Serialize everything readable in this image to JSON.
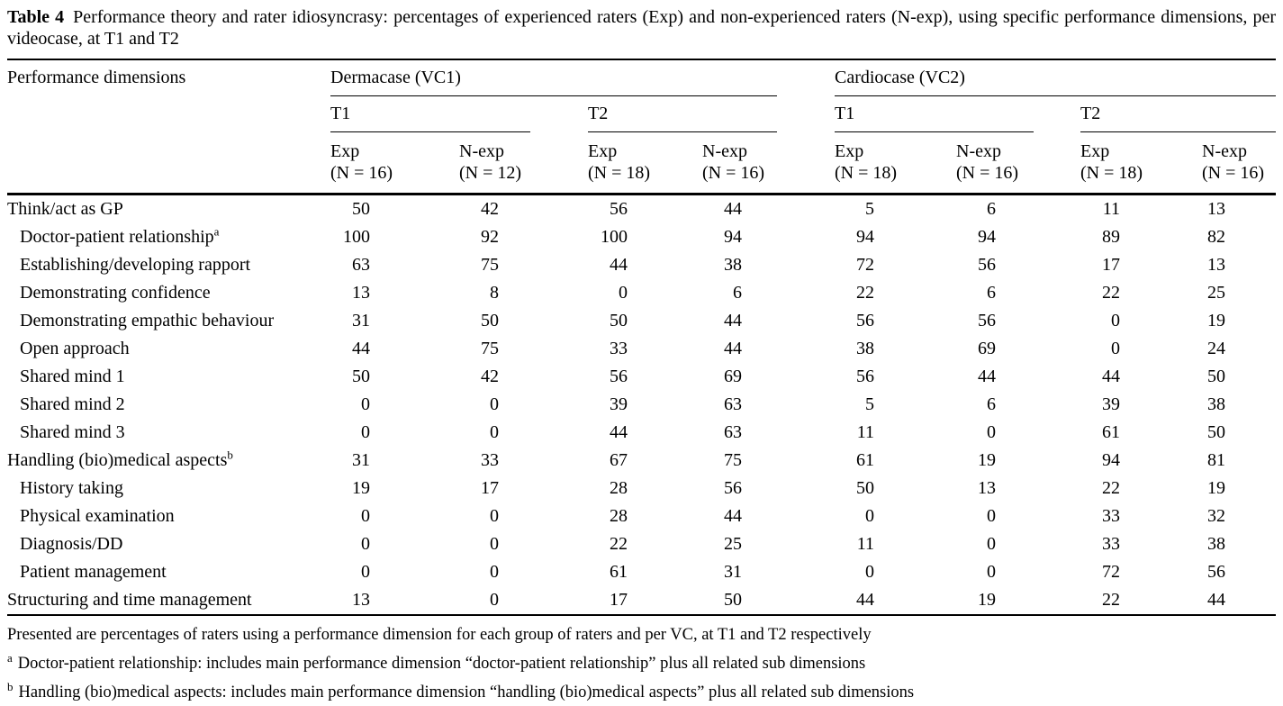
{
  "title": {
    "label": "Table 4",
    "text": "Performance theory and rater idiosyncrasy: percentages of experienced raters (Exp) and non-experienced raters (N-exp), using specific performance dimensions, per videocase, at T1 and T2"
  },
  "table": {
    "row_header": "Performance dimensions",
    "groups": [
      {
        "label": "Dermacase (VC1)",
        "times": [
          {
            "label": "T1",
            "cols": [
              {
                "top": "Exp",
                "n": "(N = 16)"
              },
              {
                "top": "N-exp",
                "n": "(N = 12)"
              }
            ]
          },
          {
            "label": "T2",
            "cols": [
              {
                "top": "Exp",
                "n": "(N = 18)"
              },
              {
                "top": "N-exp",
                "n": "(N = 16)"
              }
            ]
          }
        ]
      },
      {
        "label": "Cardiocase (VC2)",
        "times": [
          {
            "label": "T1",
            "cols": [
              {
                "top": "Exp",
                "n": "(N = 18)"
              },
              {
                "top": "N-exp",
                "n": "(N = 16)"
              }
            ]
          },
          {
            "label": "T2",
            "cols": [
              {
                "top": "Exp",
                "n": "(N = 18)"
              },
              {
                "top": "N-exp",
                "n": "(N = 16)"
              }
            ]
          }
        ]
      }
    ],
    "rows": [
      {
        "label": "Think/act as GP",
        "sup": "",
        "sub": false,
        "values": [
          50,
          42,
          56,
          44,
          5,
          6,
          11,
          13
        ]
      },
      {
        "label": "Doctor-patient relationship",
        "sup": "a",
        "sub": true,
        "values": [
          100,
          92,
          100,
          94,
          94,
          94,
          89,
          82
        ]
      },
      {
        "label": "Establishing/developing rapport",
        "sup": "",
        "sub": true,
        "values": [
          63,
          75,
          44,
          38,
          72,
          56,
          17,
          13
        ]
      },
      {
        "label": "Demonstrating confidence",
        "sup": "",
        "sub": true,
        "values": [
          13,
          8,
          0,
          6,
          22,
          6,
          22,
          25
        ]
      },
      {
        "label": "Demonstrating empathic behaviour",
        "sup": "",
        "sub": true,
        "values": [
          31,
          50,
          50,
          44,
          56,
          56,
          0,
          19
        ]
      },
      {
        "label": "Open approach",
        "sup": "",
        "sub": true,
        "values": [
          44,
          75,
          33,
          44,
          38,
          69,
          0,
          24
        ]
      },
      {
        "label": "Shared mind 1",
        "sup": "",
        "sub": true,
        "values": [
          50,
          42,
          56,
          69,
          56,
          44,
          44,
          50
        ]
      },
      {
        "label": "Shared mind 2",
        "sup": "",
        "sub": true,
        "values": [
          0,
          0,
          39,
          63,
          5,
          6,
          39,
          38
        ]
      },
      {
        "label": "Shared mind 3",
        "sup": "",
        "sub": true,
        "values": [
          0,
          0,
          44,
          63,
          11,
          0,
          61,
          50
        ]
      },
      {
        "label": "Handling (bio)medical aspects",
        "sup": "b",
        "sub": false,
        "values": [
          31,
          33,
          67,
          75,
          61,
          19,
          94,
          81
        ]
      },
      {
        "label": "History taking",
        "sup": "",
        "sub": true,
        "values": [
          19,
          17,
          28,
          56,
          50,
          13,
          22,
          19
        ]
      },
      {
        "label": "Physical examination",
        "sup": "",
        "sub": true,
        "values": [
          0,
          0,
          28,
          44,
          0,
          0,
          33,
          32
        ]
      },
      {
        "label": "Diagnosis/DD",
        "sup": "",
        "sub": true,
        "values": [
          0,
          0,
          22,
          25,
          11,
          0,
          33,
          38
        ]
      },
      {
        "label": "Patient management",
        "sup": "",
        "sub": true,
        "values": [
          0,
          0,
          61,
          31,
          0,
          0,
          72,
          56
        ]
      },
      {
        "label": "Structuring and time management",
        "sup": "",
        "sub": false,
        "values": [
          13,
          0,
          17,
          50,
          44,
          19,
          22,
          44
        ]
      }
    ]
  },
  "footnotes": [
    {
      "sup": "",
      "text": "Presented are percentages of raters using a performance dimension for each group of raters and per VC, at T1 and T2 respectively"
    },
    {
      "sup": "a",
      "text": "Doctor-patient relationship: includes main performance dimension “doctor-patient relationship” plus all related sub dimensions"
    },
    {
      "sup": "b",
      "text": "Handling (bio)medical aspects: includes main performance dimension “handling (bio)medical aspects” plus all related sub dimensions"
    }
  ]
}
